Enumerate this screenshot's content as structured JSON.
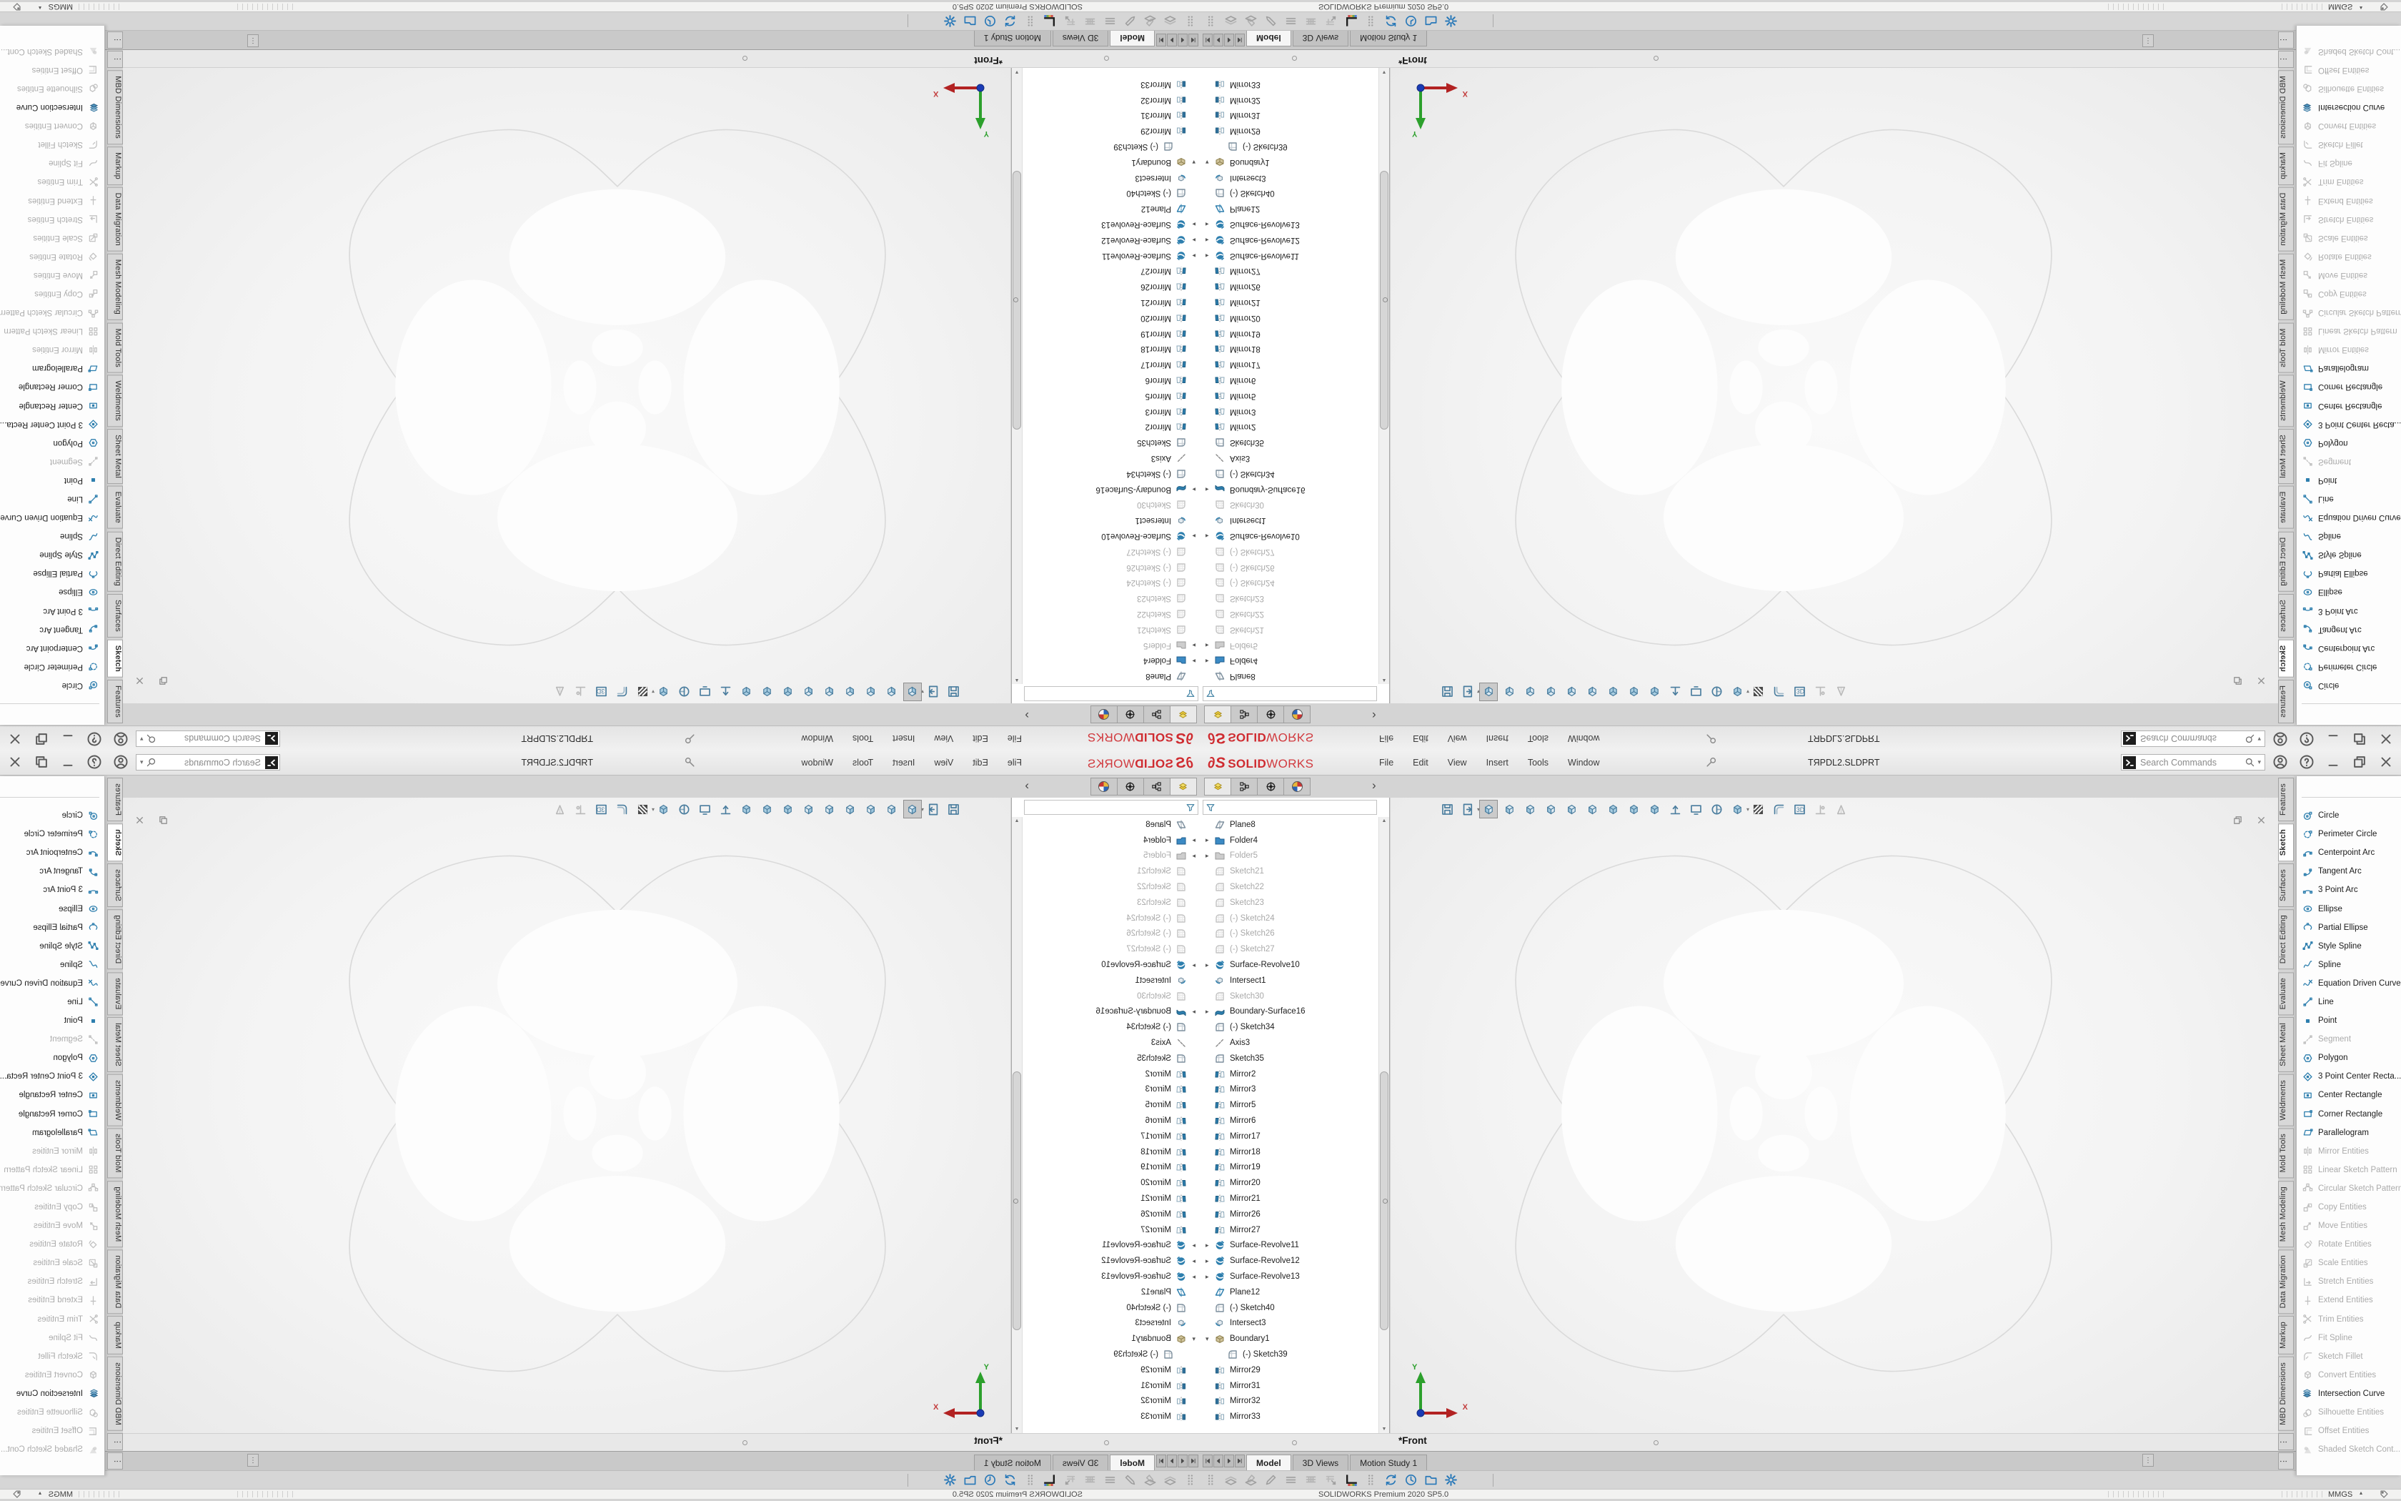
{
  "colors": {
    "accent_blue": "#2e7fae",
    "logo_red": "#cf2b30",
    "chrome_gray": "#d4d4d4",
    "viewport_gray": "#f3f3f3",
    "blob_gray": "#e7e7e7"
  },
  "app": {
    "logo_mark": "∂S",
    "brand_bold": "SOLID",
    "brand_light": "WORKS",
    "menus": [
      {
        "label": "File"
      },
      {
        "label": "Edit"
      },
      {
        "label": "View"
      },
      {
        "label": "Insert"
      },
      {
        "label": "Tools"
      },
      {
        "label": "Window"
      }
    ],
    "document_title": "TЯPDL2.SLDPRT",
    "search_placeholder": "Search Commands",
    "titlebar_icons": [
      "pin-icon",
      "user-icon",
      "help-icon",
      "minimize-icon",
      "restore-icon",
      "close-icon"
    ]
  },
  "glyphs": {
    "chevron": "›",
    "dropdown": "▾",
    "up_small": "▴",
    "more": "⋮",
    "scroll_up": "▲",
    "scroll_down": "▼"
  },
  "feature_tree": {
    "tabs": [
      {
        "icon": "fm-tree",
        "active": true
      },
      {
        "icon": "fm-prop"
      },
      {
        "icon": "fm-config"
      },
      {
        "icon": "fm-display"
      }
    ],
    "filter_icon": "funnel-icon",
    "items": [
      {
        "label": "Plane8",
        "icon": "plane"
      },
      {
        "label": "Folder4",
        "icon": "folder-blue",
        "expand": "r"
      },
      {
        "label": "Folder5",
        "icon": "folder-gray",
        "expand": "r",
        "state": "gray"
      },
      {
        "label": "Sketch21",
        "icon": "sketch",
        "state": "gray"
      },
      {
        "label": "Sketch22",
        "icon": "sketch",
        "state": "gray"
      },
      {
        "label": "Sketch23",
        "icon": "sketch",
        "state": "gray"
      },
      {
        "label": "(-) Sketch24",
        "icon": "sketch",
        "state": "gray"
      },
      {
        "label": "(-) Sketch26",
        "icon": "sketch",
        "state": "gray"
      },
      {
        "label": "(-) Sketch27",
        "icon": "sketch",
        "state": "gray"
      },
      {
        "label": "Surface-Revolve10",
        "icon": "revolve",
        "expand": "r"
      },
      {
        "label": "Intersect1",
        "icon": "intersect"
      },
      {
        "label": "Sketch30",
        "icon": "sketch",
        "state": "gray"
      },
      {
        "label": "Boundary-Surface16",
        "icon": "boundary",
        "expand": "r"
      },
      {
        "label": "(-) Sketch34",
        "icon": "sketch-dark"
      },
      {
        "label": "Axis3",
        "icon": "axis"
      },
      {
        "label": "Sketch35",
        "icon": "sketch-dark"
      },
      {
        "label": "Mirror2",
        "icon": "mirror"
      },
      {
        "label": "Mirror3",
        "icon": "mirror"
      },
      {
        "label": "Mirror5",
        "icon": "mirror"
      },
      {
        "label": "Mirror6",
        "icon": "mirror"
      },
      {
        "label": "Mirror17",
        "icon": "mirror"
      },
      {
        "label": "Mirror18",
        "icon": "mirror"
      },
      {
        "label": "Mirror19",
        "icon": "mirror"
      },
      {
        "label": "Mirror20",
        "icon": "mirror"
      },
      {
        "label": "Mirror21",
        "icon": "mirror"
      },
      {
        "label": "Mirror26",
        "icon": "mirror"
      },
      {
        "label": "Mirror27",
        "icon": "mirror"
      },
      {
        "label": "Surface-Revolve11",
        "icon": "revolve",
        "expand": "r"
      },
      {
        "label": "Surface-Revolve12",
        "icon": "revolve",
        "expand": "r"
      },
      {
        "label": "Surface-Revolve13",
        "icon": "revolve",
        "expand": "r"
      },
      {
        "label": "Plane12",
        "icon": "plane-blue"
      },
      {
        "label": "(-) Sketch40",
        "icon": "sketch-dark"
      },
      {
        "label": "Intersect3",
        "icon": "intersect"
      },
      {
        "label": "Boundary1",
        "icon": "boundary1",
        "expand": "d"
      },
      {
        "label": "(-) Sketch39",
        "icon": "sketch-dark",
        "indent": 1
      },
      {
        "label": "Mirror29",
        "icon": "mirror2"
      },
      {
        "label": "Mirror31",
        "icon": "mirror2"
      },
      {
        "label": "Mirror32",
        "icon": "mirror2"
      },
      {
        "label": "Mirror33",
        "icon": "mirror2"
      }
    ]
  },
  "views_toolbar": {
    "buttons": [
      {
        "icon": "save"
      },
      {
        "icon": "export",
        "dd": true
      },
      {
        "icon": "cube-front",
        "sel": true
      },
      {
        "icon": "cube-back"
      },
      {
        "icon": "cube-left"
      },
      {
        "icon": "cube-right"
      },
      {
        "icon": "cube-top"
      },
      {
        "icon": "cube-bottom"
      },
      {
        "icon": "cube-iso"
      },
      {
        "icon": "cube-tri"
      },
      {
        "icon": "cube-di"
      },
      {
        "icon": "normal-to"
      },
      {
        "icon": "display-prefs"
      },
      {
        "icon": "section"
      },
      {
        "icon": "shaded",
        "dd": true
      },
      {
        "icon": "zebra"
      },
      {
        "icon": "curvature"
      },
      {
        "icon": "sketch3d"
      },
      {
        "icon": "perp",
        "enabled": false
      },
      {
        "icon": "instant",
        "enabled": false
      }
    ]
  },
  "viewport": {
    "view_label": "*Front",
    "axis_x": "X",
    "axis_y": "Y",
    "mdi_icons": [
      "mdi-restore-icon",
      "mdi-close-icon"
    ]
  },
  "right_panel": {
    "tabs": [
      {
        "label": "Features"
      },
      {
        "label": "Sketch",
        "active": true
      },
      {
        "label": "Surfaces"
      },
      {
        "label": "Direct Editing"
      },
      {
        "label": "Evaluate"
      },
      {
        "label": "Sheet Metal"
      },
      {
        "label": "Weldments"
      },
      {
        "label": "Mold Tools"
      },
      {
        "label": "Mesh Modeling"
      },
      {
        "label": "Data Migration"
      },
      {
        "label": "Markup"
      },
      {
        "label": "MBD Dimensions"
      },
      {
        "label": "⋮",
        "stub": true
      },
      {
        "label": "⋮",
        "stub": true
      }
    ],
    "menu_items": [
      {
        "label": "Circle",
        "icon": "circle"
      },
      {
        "label": "Perimeter Circle",
        "icon": "perimeter-circle"
      },
      {
        "label": "Centerpoint Arc",
        "icon": "centerpoint-arc"
      },
      {
        "label": "Tangent Arc",
        "icon": "tangent-arc"
      },
      {
        "label": "3 Point Arc",
        "icon": "three-point-arc"
      },
      {
        "label": "Ellipse",
        "icon": "ellipse"
      },
      {
        "label": "Partial Ellipse",
        "icon": "partial-ellipse"
      },
      {
        "label": "Style Spline",
        "icon": "style-spline"
      },
      {
        "label": "Spline",
        "icon": "spline"
      },
      {
        "label": "Equation Driven Curve",
        "icon": "eq-curve"
      },
      {
        "label": "Line",
        "icon": "line"
      },
      {
        "label": "Point",
        "icon": "point"
      },
      {
        "label": "Segment",
        "icon": "segment",
        "enabled": false
      },
      {
        "label": "Polygon",
        "icon": "polygon"
      },
      {
        "label": "3 Point Center Recta...",
        "icon": "three-point-center-rect"
      },
      {
        "label": "Center Rectangle",
        "icon": "center-rect"
      },
      {
        "label": "Corner Rectangle",
        "icon": "corner-rect"
      },
      {
        "label": "Parallelogram",
        "icon": "parallelogram"
      },
      {
        "label": "Mirror Entities",
        "icon": "mirror-ent",
        "enabled": false
      },
      {
        "label": "Linear Sketch Pattern",
        "icon": "linear-pattern",
        "enabled": false
      },
      {
        "label": "Circular Sketch Pattern",
        "icon": "circular-pattern",
        "enabled": false
      },
      {
        "label": "Copy Entities",
        "icon": "copy-ent",
        "enabled": false
      },
      {
        "label": "Move Entities",
        "icon": "move-ent",
        "enabled": false
      },
      {
        "label": "Rotate Entities",
        "icon": "rotate-ent",
        "enabled": false
      },
      {
        "label": "Scale Entities",
        "icon": "scale-ent",
        "enabled": false
      },
      {
        "label": "Stretch Entities",
        "icon": "stretch-ent",
        "enabled": false
      },
      {
        "label": "Extend Entities",
        "icon": "extend-ent",
        "enabled": false
      },
      {
        "label": "Trim Entities",
        "icon": "trim-ent",
        "enabled": false
      },
      {
        "label": "Fit Spline",
        "icon": "fit-spline",
        "enabled": false
      },
      {
        "label": "Sketch Fillet",
        "icon": "sketch-fillet",
        "enabled": false
      },
      {
        "label": "Convert Entities",
        "icon": "convert-ent",
        "enabled": false
      },
      {
        "label": "Intersection Curve",
        "icon": "intersection-curve"
      },
      {
        "label": "Silhouette Entities",
        "icon": "silhouette",
        "enabled": false
      },
      {
        "label": "Offset Entities",
        "icon": "offset-ent",
        "enabled": false
      },
      {
        "label": "Shaded Sketch Cont...",
        "icon": "shaded-contours",
        "enabled": false
      }
    ]
  },
  "doc_tabs": {
    "nav": [
      {
        "icon": "nav-first"
      },
      {
        "icon": "nav-prev"
      },
      {
        "icon": "nav-next"
      },
      {
        "icon": "nav-last"
      }
    ],
    "tabs": [
      {
        "label": "Model",
        "active": true
      },
      {
        "label": "3D Views"
      },
      {
        "label": "Motion Study 1"
      }
    ]
  },
  "bottom_toolbar": {
    "items": [
      {
        "icon": "drag-dots"
      },
      {
        "icon": "layers"
      },
      {
        "icon": "layers-pencil"
      },
      {
        "icon": "pencil"
      },
      {
        "icon": "hbars"
      },
      {
        "icon": "grid-faint"
      },
      {
        "icon": "grid-arrow"
      },
      {
        "icon": "chart-motion"
      },
      {
        "icon": "drag-dots"
      },
      {
        "icon": "sync-blue",
        "blue": true
      },
      {
        "icon": "clock-blue",
        "blue": true
      },
      {
        "icon": "folder-blue-i",
        "blue": true
      },
      {
        "icon": "gear-blue",
        "blue": true
      }
    ]
  },
  "status_bar": {
    "left_text": "SOLIDWORKS Premium 2020 SP5.0",
    "units": "MMGS"
  }
}
